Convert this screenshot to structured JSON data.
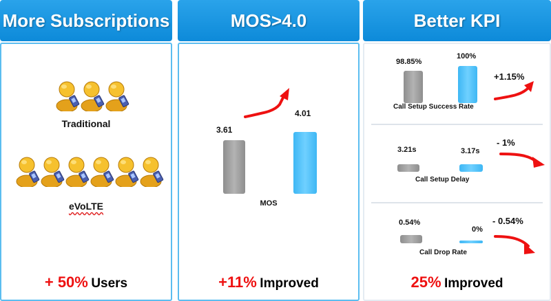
{
  "colors": {
    "header": "#1b97e3",
    "box_border": "#5bbdf0",
    "accent_red": "#ee1111",
    "bar_gray": "#a0a0a0",
    "bar_blue": "#5bc8ff"
  },
  "panel1": {
    "title": "More Subscriptions",
    "traditional_label": "Traditional",
    "evolte_label": "eVoLTE",
    "traditional_user_count": 3,
    "evolte_user_count": 6,
    "footer_value": "+ 50%",
    "footer_text": "Users"
  },
  "panel2": {
    "title": "MOS>4.0",
    "chart": {
      "category": "MOS",
      "values": [
        3.61,
        4.01
      ],
      "value_labels": [
        "3.61",
        "4.01"
      ],
      "colors": [
        "gray",
        "blue"
      ]
    },
    "footer_value": "+11%",
    "footer_text": "Improved"
  },
  "panel3": {
    "title": "Better KPI",
    "kpis": [
      {
        "name": "Call Setup Success Rate",
        "labels": [
          "98.85%",
          "100%"
        ],
        "values": [
          98.85,
          100
        ],
        "change": "+1.15%"
      },
      {
        "name": "Call Setup Delay",
        "labels": [
          "3.21s",
          "3.17s"
        ],
        "values": [
          3.21,
          3.17
        ],
        "change": "- 1%"
      },
      {
        "name": "Call Drop Rate",
        "labels": [
          "0.54%",
          "0%"
        ],
        "values": [
          0.54,
          0
        ],
        "change": "- 0.54%"
      }
    ],
    "footer_value": "25%",
    "footer_text": "Improved"
  }
}
